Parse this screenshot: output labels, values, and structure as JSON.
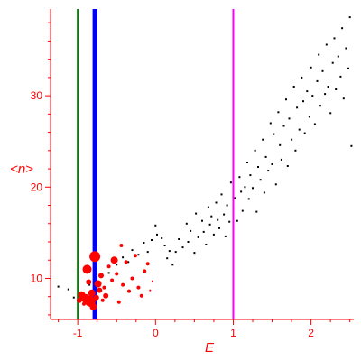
{
  "chart_data": {
    "type": "scatter",
    "title": "",
    "xlabel": "E",
    "ylabel": "<n>",
    "xlim": [
      -1.35,
      2.55
    ],
    "ylim": [
      5.5,
      39.5
    ],
    "x_ticks": [
      -1,
      0,
      1,
      2
    ],
    "y_ticks": [
      10,
      20,
      30
    ],
    "grid": false,
    "legend": "none",
    "colors": {
      "axes": "#ff0000",
      "text": "#ff0000",
      "black_points": "#000000",
      "red_points": "#ff0000",
      "line_green": "#008000",
      "line_blue": "#0000ff",
      "line_magenta": "#ff00ff"
    },
    "vertical_lines": [
      {
        "x": -1.0,
        "color": "#008000",
        "width": "thin"
      },
      {
        "x": -0.78,
        "color": "#0000ff",
        "width": "thick"
      },
      {
        "x": 1.0,
        "color": "#ff00ff",
        "width": "thin"
      }
    ],
    "series": [
      {
        "marker": "small-dot",
        "color": "#000000",
        "points": [
          [
            -1.25,
            9.1
          ],
          [
            -1.12,
            8.8
          ],
          [
            -1.05,
            7.9
          ],
          [
            -0.95,
            8.4
          ],
          [
            -0.85,
            9.3
          ],
          [
            -0.7,
            10.2
          ],
          [
            -0.6,
            10.6
          ],
          [
            -0.5,
            11.5
          ],
          [
            -0.42,
            12.3
          ],
          [
            -0.35,
            11.8
          ],
          [
            -0.3,
            13.1
          ],
          [
            -0.22,
            12.6
          ],
          [
            -0.15,
            13.9
          ],
          [
            -0.1,
            12.9
          ],
          [
            -0.05,
            14.2
          ],
          [
            0.0,
            15.8
          ],
          [
            0.02,
            14.8
          ],
          [
            0.08,
            14.4
          ],
          [
            0.12,
            13.6
          ],
          [
            0.15,
            12.2
          ],
          [
            0.18,
            13.0
          ],
          [
            0.22,
            11.5
          ],
          [
            0.26,
            12.9
          ],
          [
            0.3,
            14.3
          ],
          [
            0.35,
            13.4
          ],
          [
            0.4,
            16.0
          ],
          [
            0.42,
            14.0
          ],
          [
            0.45,
            15.2
          ],
          [
            0.5,
            12.8
          ],
          [
            0.52,
            17.1
          ],
          [
            0.55,
            14.5
          ],
          [
            0.6,
            16.3
          ],
          [
            0.62,
            15.1
          ],
          [
            0.65,
            13.7
          ],
          [
            0.68,
            17.8
          ],
          [
            0.7,
            15.9
          ],
          [
            0.72,
            16.8
          ],
          [
            0.75,
            14.8
          ],
          [
            0.78,
            18.3
          ],
          [
            0.8,
            16.4
          ],
          [
            0.82,
            15.5
          ],
          [
            0.85,
            19.2
          ],
          [
            0.88,
            17.0
          ],
          [
            0.9,
            14.6
          ],
          [
            0.92,
            18.0
          ],
          [
            0.95,
            16.2
          ],
          [
            0.97,
            20.5
          ],
          [
            1.0,
            17.6
          ],
          [
            1.02,
            18.8
          ],
          [
            1.05,
            16.3
          ],
          [
            1.08,
            21.1
          ],
          [
            1.1,
            19.5
          ],
          [
            1.12,
            17.4
          ],
          [
            1.15,
            20.0
          ],
          [
            1.18,
            22.7
          ],
          [
            1.2,
            18.7
          ],
          [
            1.22,
            21.3
          ],
          [
            1.25,
            19.9
          ],
          [
            1.28,
            24.0
          ],
          [
            1.3,
            17.3
          ],
          [
            1.32,
            22.2
          ],
          [
            1.35,
            20.8
          ],
          [
            1.38,
            25.2
          ],
          [
            1.4,
            19.4
          ],
          [
            1.42,
            23.3
          ],
          [
            1.45,
            21.8
          ],
          [
            1.48,
            27.0
          ],
          [
            1.5,
            22.5
          ],
          [
            1.52,
            25.8
          ],
          [
            1.55,
            20.3
          ],
          [
            1.58,
            28.2
          ],
          [
            1.6,
            24.6
          ],
          [
            1.62,
            23.0
          ],
          [
            1.65,
            26.7
          ],
          [
            1.68,
            29.6
          ],
          [
            1.7,
            22.3
          ],
          [
            1.72,
            27.5
          ],
          [
            1.75,
            25.2
          ],
          [
            1.78,
            31.0
          ],
          [
            1.8,
            24.0
          ],
          [
            1.82,
            28.7
          ],
          [
            1.85,
            26.3
          ],
          [
            1.88,
            32.0
          ],
          [
            1.9,
            29.4
          ],
          [
            1.92,
            25.9
          ],
          [
            1.95,
            30.5
          ],
          [
            1.98,
            27.7
          ],
          [
            2.0,
            33.1
          ],
          [
            2.02,
            30.0
          ],
          [
            2.05,
            26.9
          ],
          [
            2.08,
            31.6
          ],
          [
            2.1,
            34.5
          ],
          [
            2.12,
            28.9
          ],
          [
            2.15,
            32.7
          ],
          [
            2.18,
            30.2
          ],
          [
            2.2,
            35.6
          ],
          [
            2.22,
            31.0
          ],
          [
            2.25,
            28.1
          ],
          [
            2.28,
            33.6
          ],
          [
            2.3,
            36.3
          ],
          [
            2.32,
            30.7
          ],
          [
            2.35,
            34.3
          ],
          [
            2.38,
            32.1
          ],
          [
            2.4,
            37.4
          ],
          [
            2.42,
            29.7
          ],
          [
            2.45,
            35.2
          ],
          [
            2.48,
            33.0
          ],
          [
            2.5,
            38.6
          ],
          [
            2.52,
            24.5
          ]
        ]
      },
      {
        "marker": "red-dot",
        "color": "#ff0000",
        "points": [
          [
            -0.98,
            7.6,
            3
          ],
          [
            -0.95,
            8.2,
            4
          ],
          [
            -0.92,
            7.2,
            2
          ],
          [
            -0.9,
            7.8,
            5
          ],
          [
            -0.88,
            11.0,
            5
          ],
          [
            -0.86,
            9.6,
            3
          ],
          [
            -0.84,
            7.5,
            6
          ],
          [
            -0.82,
            8.4,
            4
          ],
          [
            -0.8,
            6.9,
            4
          ],
          [
            -0.78,
            12.4,
            6
          ],
          [
            -0.76,
            7.9,
            3
          ],
          [
            -0.74,
            9.4,
            4
          ],
          [
            -0.72,
            8.7,
            3
          ],
          [
            -0.7,
            10.3,
            3
          ],
          [
            -0.68,
            7.6,
            2
          ],
          [
            -0.66,
            9.0,
            2
          ],
          [
            -0.64,
            8.1,
            3
          ],
          [
            -0.6,
            11.3,
            2
          ],
          [
            -0.56,
            9.8,
            2
          ],
          [
            -0.53,
            12.0,
            4
          ],
          [
            -0.5,
            10.5,
            2
          ],
          [
            -0.47,
            7.4,
            2
          ],
          [
            -0.44,
            13.6,
            2
          ],
          [
            -0.42,
            9.3,
            2
          ],
          [
            -0.38,
            11.8,
            2
          ],
          [
            -0.34,
            8.6,
            2
          ],
          [
            -0.3,
            10.0,
            2
          ],
          [
            -0.26,
            12.5,
            2
          ],
          [
            -0.22,
            9.0,
            2
          ],
          [
            -0.18,
            8.1,
            2
          ],
          [
            -0.14,
            10.8,
            2
          ],
          [
            -0.1,
            11.6,
            2
          ],
          [
            -0.07,
            8.7,
            1
          ],
          [
            -0.04,
            9.7,
            1
          ]
        ]
      }
    ]
  }
}
